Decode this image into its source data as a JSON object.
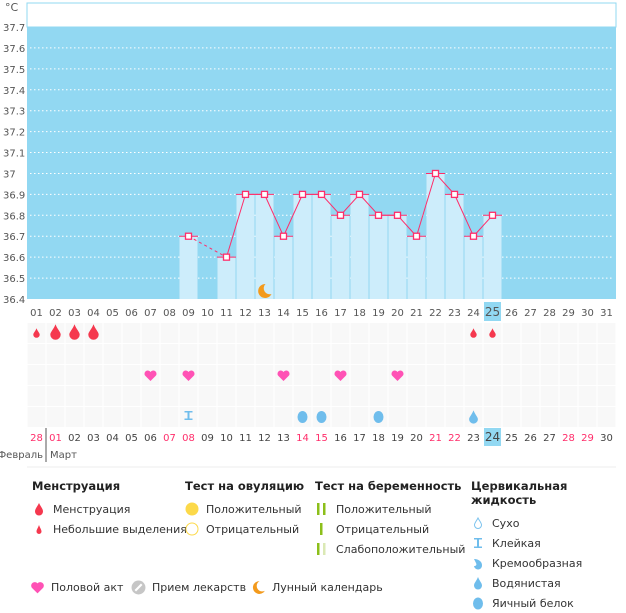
{
  "chart_data": {
    "type": "bar",
    "yunit": "°C",
    "ylim": [
      36.4,
      37.7
    ],
    "yticks": [
      "36.4",
      "36.5",
      "36.6",
      "36.7",
      "36.8",
      "36.9",
      "37",
      "37.1",
      "37.2",
      "37.3",
      "37.4",
      "37.5",
      "37.6",
      "37.7"
    ],
    "cycle_days": [
      "01",
      "02",
      "03",
      "04",
      "05",
      "06",
      "07",
      "08",
      "09",
      "10",
      "11",
      "12",
      "13",
      "14",
      "15",
      "16",
      "17",
      "18",
      "19",
      "20",
      "21",
      "22",
      "23",
      "24",
      "25",
      "26",
      "27",
      "28",
      "29",
      "30",
      "31"
    ],
    "temperatures": {
      "09": 36.7,
      "11": 36.6,
      "12": 36.9,
      "13": 36.9,
      "14": 36.7,
      "15": 36.9,
      "16": 36.9,
      "17": 36.8,
      "18": 36.9,
      "19": 36.8,
      "20": 36.8,
      "21": 36.7,
      "22": 37.0,
      "23": 36.9,
      "24": 36.7,
      "25": 36.8
    },
    "current_cycle_day": "25",
    "grid": true,
    "colors": {
      "background": "#92d8f2",
      "bar": "#cdedfb",
      "line": "#ff2d6a"
    }
  },
  "calendar": {
    "dates": [
      "28",
      "01",
      "02",
      "03",
      "04",
      "05",
      "06",
      "07",
      "08",
      "09",
      "10",
      "11",
      "12",
      "13",
      "14",
      "15",
      "16",
      "17",
      "18",
      "19",
      "20",
      "21",
      "22",
      "23",
      "24",
      "25",
      "26",
      "27",
      "28",
      "29",
      "30"
    ],
    "weekend_columns": [
      1,
      2,
      8,
      9,
      15,
      16,
      22,
      23,
      29,
      30
    ],
    "today_column": 25,
    "month_prev": "Февраль",
    "month_current": "Март",
    "menstruation": {
      "heavy": [
        2,
        3,
        4
      ],
      "light": [
        1,
        24,
        25
      ]
    },
    "intercourse": [
      7,
      9,
      14,
      17,
      20
    ],
    "cervical": {
      "sticky": [
        9
      ],
      "eggwhite": [
        15,
        16,
        19
      ],
      "watery": [
        24
      ]
    },
    "lunar": [
      13
    ]
  },
  "legend": {
    "menstruation": {
      "title": "Менструация",
      "items": [
        "Менструация",
        "Небольшие выделения"
      ]
    },
    "ovulation": {
      "title": "Тест на овуляцию",
      "items": [
        "Положительный",
        "Отрицательный"
      ]
    },
    "pregnancy": {
      "title": "Тест на беременность",
      "items": [
        "Положительный",
        "Отрицательный",
        "Слабоположительный"
      ]
    },
    "cervical": {
      "title": "Цервикальная жидкость",
      "items": [
        "Сухо",
        "Клейкая",
        "Кремообразная",
        "Водянистая",
        "Яичный белок"
      ]
    },
    "other": [
      "Половой акт",
      "Прием лекарств",
      "Лунный календарь"
    ]
  }
}
